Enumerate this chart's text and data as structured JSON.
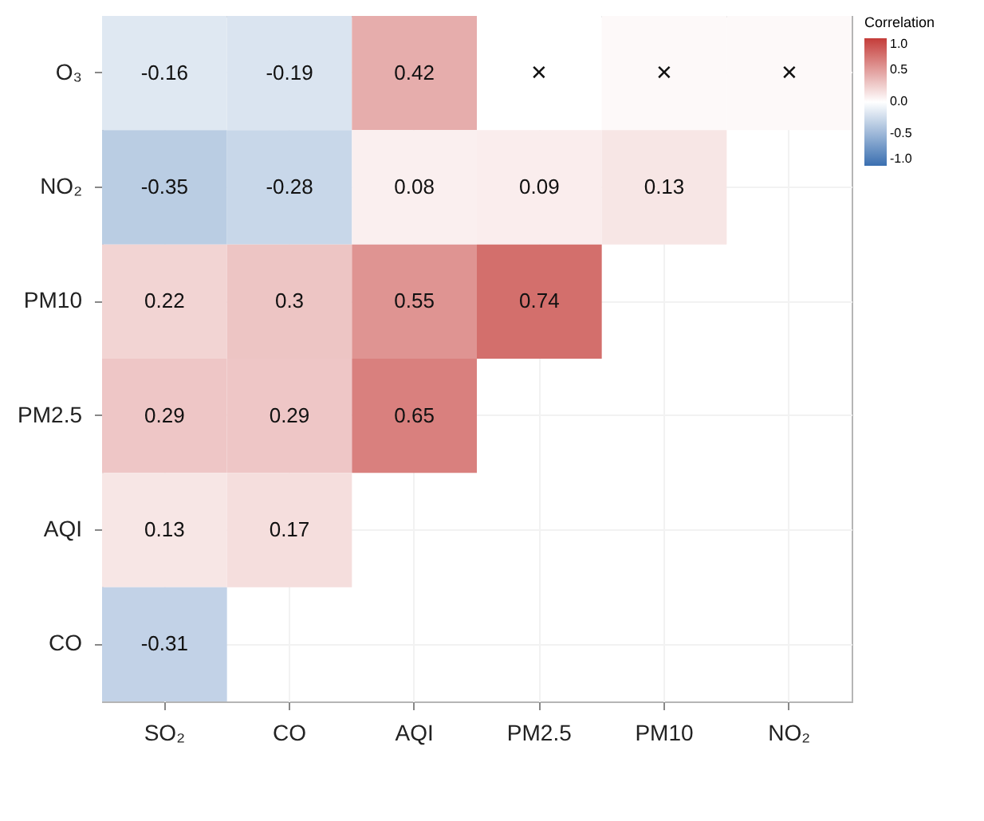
{
  "chart_data": {
    "type": "heatmap",
    "categories": [
      "SO₂",
      "CO",
      "AQI",
      "PM2.5",
      "PM10",
      "NO₂"
    ],
    "y_categories": [
      "O₃",
      "NO₂",
      "PM10",
      "PM2.5",
      "AQI",
      "CO"
    ],
    "cells": [
      [
        -0.16,
        -0.19,
        0.42,
        0.0,
        0.03,
        0.03
      ],
      [
        -0.35,
        -0.28,
        0.08,
        0.09,
        0.13,
        null
      ],
      [
        0.22,
        0.3,
        0.55,
        0.74,
        null,
        null
      ],
      [
        0.29,
        0.29,
        0.65,
        null,
        null,
        null
      ],
      [
        0.13,
        0.17,
        null,
        null,
        null,
        null
      ],
      [
        -0.31,
        null,
        null,
        null,
        null,
        null
      ]
    ],
    "cell_labels": [
      [
        "-0.16",
        "-0.19",
        "0.42",
        "✕",
        "✕",
        "✕"
      ],
      [
        "-0.35",
        "-0.28",
        "0.08",
        "0.09",
        "0.13",
        null
      ],
      [
        "0.22",
        "0.3",
        "0.55",
        "0.74",
        null,
        null
      ],
      [
        "0.29",
        "0.29",
        "0.65",
        null,
        null,
        null
      ],
      [
        "0.13",
        "0.17",
        null,
        null,
        null,
        null
      ],
      [
        "-0.31",
        null,
        null,
        null,
        null,
        null
      ]
    ],
    "legend_title": "Correlation",
    "clim": [
      -1,
      1
    ],
    "cticks": [
      {
        "value": 1,
        "label": "1.0"
      },
      {
        "value": 0.5,
        "label": "0.5"
      },
      {
        "value": 0,
        "label": "0.0"
      },
      {
        "value": -0.5,
        "label": "-0.5"
      },
      {
        "value": -1,
        "label": "-1.0"
      }
    ],
    "colors": [
      "#3a6fb0",
      "#ffffff",
      "#c43c39"
    ],
    "grid": true
  }
}
